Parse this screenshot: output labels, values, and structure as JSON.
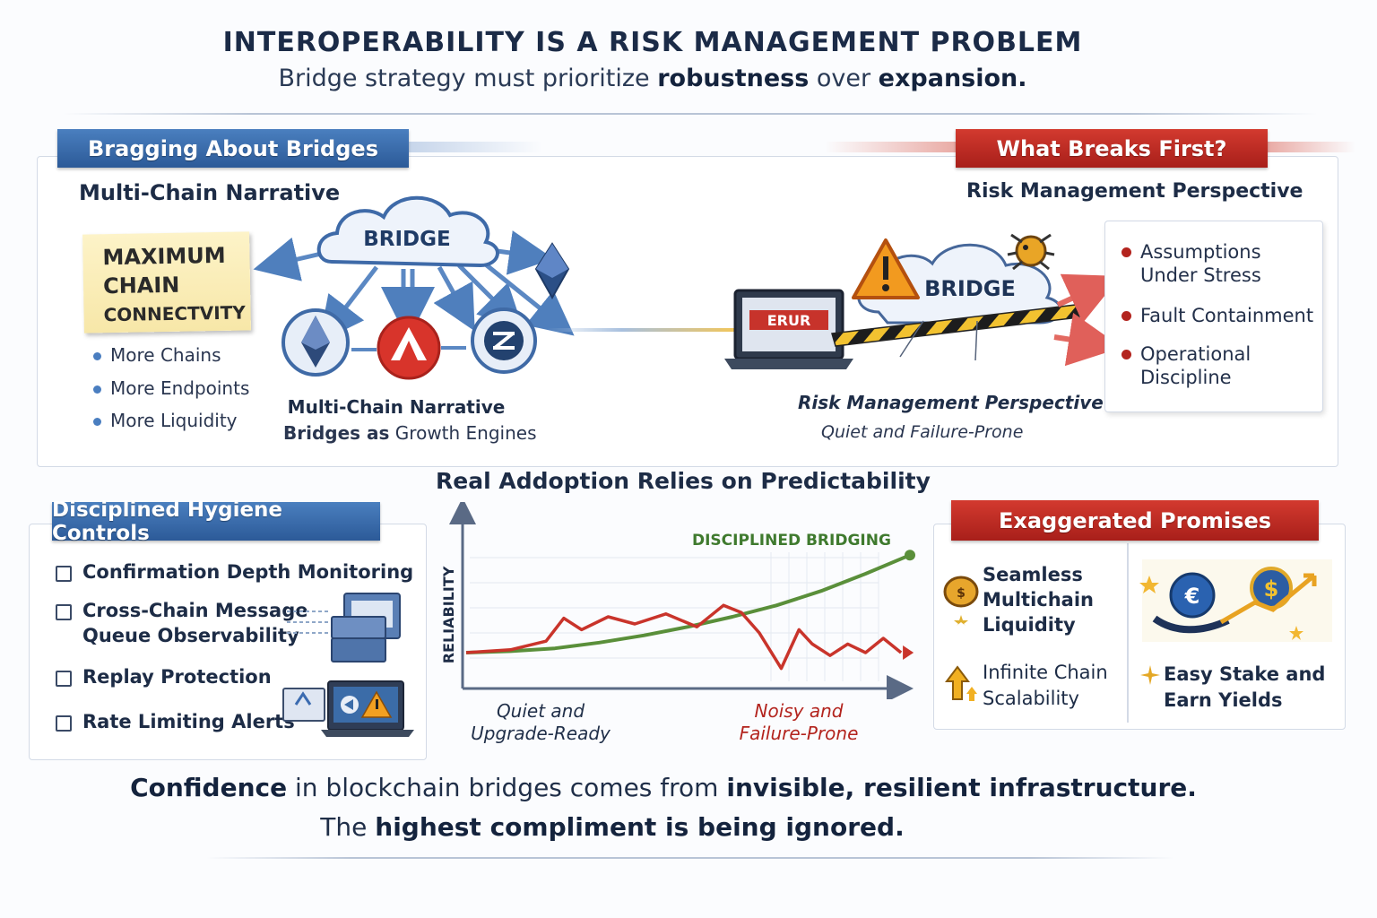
{
  "header": {
    "title": "INTEROPERABILITY IS A RISK MANAGEMENT PROBLEM",
    "subtitle_part1": "Bridge strategy must prioritize ",
    "subtitle_bold1": "robustness",
    "subtitle_part2": " over ",
    "subtitle_bold2": "expansion."
  },
  "left_panel": {
    "banner": "Bragging About Bridges",
    "heading": "Multi-Chain Narrative",
    "sticky_line1": "MAXIMUM",
    "sticky_line2": "CHAIN",
    "sticky_line3": "CONNECTVITY",
    "bullets": [
      "More Chains",
      "More Endpoints",
      "More Liquidity"
    ],
    "bridge_label": "BRIDGE",
    "caption_line1": "Multi-Chain Narrative",
    "caption_bold": "Bridges as",
    "caption_rest": " Growth Engines"
  },
  "right_panel": {
    "banner": "What Breaks First?",
    "heading": "Risk Management Perspective",
    "bridge_label": "BRIDGE",
    "laptop_label": "ERUR",
    "caption_line1": "Risk Management Perspective",
    "caption_line2": "Quiet and Failure-Prone",
    "bullets": [
      [
        "Assumptions",
        "Under Stress"
      ],
      [
        "Fault Containment"
      ],
      [
        "Operational",
        "Discipline"
      ]
    ]
  },
  "hygiene_panel": {
    "banner": "Disciplined Hygiene Controls",
    "items": [
      [
        "Confirmation Depth Monitoring"
      ],
      [
        "Cross-Chain Message",
        "Queue Observability"
      ],
      [
        "Replay Protection"
      ],
      [
        "Rate Limiting Alerts"
      ]
    ]
  },
  "chart": {
    "title": "Real Addoption Relies on Predictability",
    "ylabel": "RELIABILITY",
    "series_label": "DISCIPLINED BRIDGING",
    "x_left_line1": "Quiet and",
    "x_left_line2": "Upgrade-Ready",
    "x_right_line1": "Noisy and",
    "x_right_line2": "Failure-Prone"
  },
  "chart_data": {
    "type": "line",
    "title": "Real Addoption Relies on Predictability",
    "xlabel": "",
    "ylabel": "RELIABILITY",
    "x_ticks": [
      "Quiet and Upgrade-Ready",
      "Noisy and Failure-Prone"
    ],
    "series": [
      {
        "name": "DISCIPLINED BRIDGING",
        "color": "#5a8f3a",
        "x": [
          0,
          10,
          20,
          30,
          40,
          50,
          60,
          70,
          80,
          90,
          100
        ],
        "y": [
          20,
          21,
          23,
          27,
          32,
          38,
          45,
          53,
          63,
          75,
          88
        ]
      },
      {
        "name": "",
        "color": "#c9342b",
        "x": [
          0,
          10,
          18,
          22,
          26,
          32,
          38,
          45,
          52,
          58,
          62,
          66,
          71,
          75,
          78,
          82,
          86,
          90,
          94,
          98
        ],
        "y": [
          20,
          22,
          28,
          44,
          36,
          45,
          40,
          47,
          38,
          53,
          48,
          34,
          9,
          36,
          26,
          18,
          26,
          20,
          30,
          20
        ]
      }
    ]
  },
  "promises_panel": {
    "banner": "Exaggerated Promises",
    "item1": [
      "Seamless",
      "Multichain",
      "Liquidity"
    ],
    "item2": [
      "Infinite Chain",
      "Scalability"
    ],
    "item3": [
      "Easy Stake and",
      "Earn Yields"
    ]
  },
  "footer": {
    "l1_bold1": "Confidence",
    "l1_text1": " in blockchain bridges comes from ",
    "l1_bold2": "invisible, resilient infrastructure.",
    "l2_text1": "The ",
    "l2_bold1": "highest compliment is being ignored."
  },
  "icons": {
    "cloud": "cloud-icon",
    "warning": "warning-icon",
    "ethereum": "ethereum-icon",
    "avalanche": "avalanche-icon",
    "near": "near-icon",
    "laptop": "laptop-icon",
    "bug": "bug-icon",
    "server": "server-icon",
    "coin": "coin-icon"
  },
  "colors": {
    "blue_banner": "#2c5a98",
    "red_banner": "#a81f1a",
    "green_line": "#5a8f3a",
    "red_line": "#c9342b"
  }
}
